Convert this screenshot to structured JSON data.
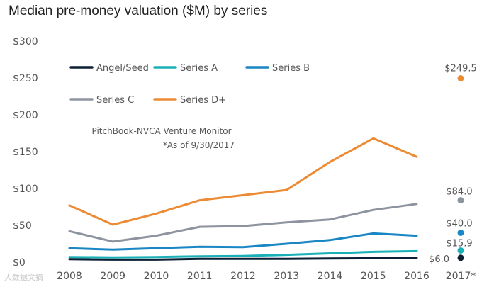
{
  "chart_data": {
    "type": "line",
    "title": "Median pre-money valuation ($M) by series",
    "categories": [
      "2008",
      "2009",
      "2010",
      "2011",
      "2012",
      "2013",
      "2014",
      "2015",
      "2016"
    ],
    "y_ticks": [
      "$0",
      "$50",
      "$100",
      "$150",
      "$200",
      "$250",
      "$300"
    ],
    "ylim": [
      0,
      300
    ],
    "series": [
      {
        "name": "Angel/Seed",
        "color": "#0d1f33",
        "values": [
          4.0,
          3.5,
          3.5,
          4.5,
          4.5,
          4.5,
          5.0,
          5.5,
          6.0
        ]
      },
      {
        "name": "Series A",
        "color": "#1ab0b8",
        "values": [
          7.0,
          6.5,
          7.0,
          8.0,
          8.5,
          10.0,
          12.0,
          14.0,
          15.0
        ]
      },
      {
        "name": "Series B",
        "color": "#1a86c4",
        "values": [
          19.0,
          17.0,
          19.0,
          21.0,
          20.5,
          25.0,
          30.0,
          39.0,
          36.0
        ]
      },
      {
        "name": "Series C",
        "color": "#8e93a0",
        "values": [
          42.0,
          28.0,
          36.0,
          48.0,
          49.0,
          54.0,
          58.0,
          71.0,
          79.0
        ]
      },
      {
        "name": "Series D+",
        "color": "#ec8b33",
        "values": [
          77.0,
          51.0,
          66.0,
          84.0,
          91.0,
          98.0,
          136.0,
          168.0,
          143.0
        ]
      }
    ],
    "points_2017": {
      "category": "2017*",
      "values": [
        {
          "series": "Series D+",
          "value": 249.5,
          "label": "$249.5"
        },
        {
          "series": "Series C",
          "value": 84.0,
          "label": "$84.0"
        },
        {
          "series": "Series B",
          "value": 40.0,
          "label": "$40.0"
        },
        {
          "series": "Series A",
          "value": 15.9,
          "label": "$15.9"
        },
        {
          "series": "Angel/Seed",
          "value": 6.0,
          "label": "$6.0"
        }
      ]
    },
    "annotation": [
      "PitchBook-NVCA Venture Monitor",
      "*As of 9/30/2017"
    ]
  },
  "watermark": "大数据文摘"
}
